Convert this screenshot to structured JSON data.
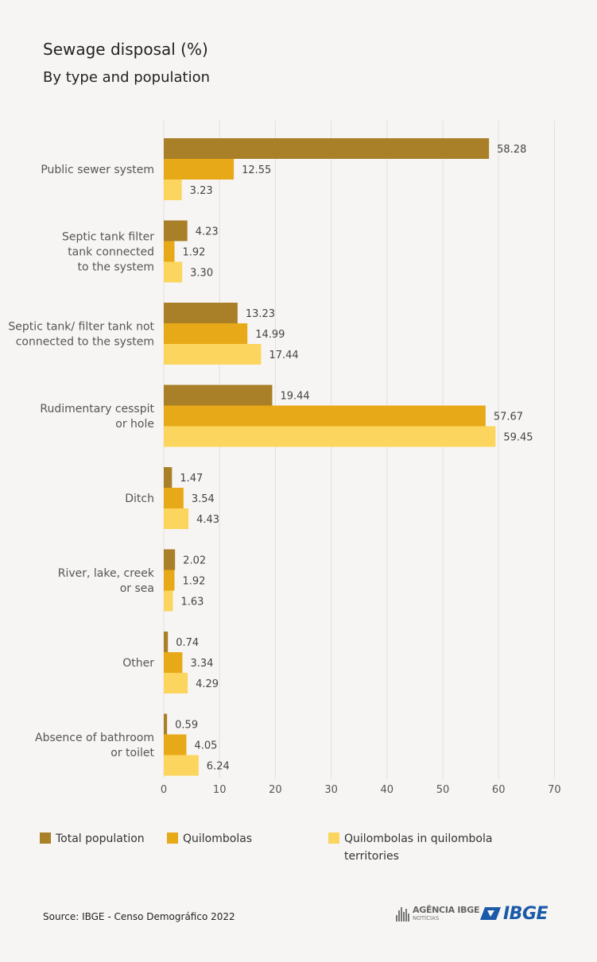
{
  "title": "Sewage disposal (%)",
  "subtitle": "By type and population",
  "source": "Source: IBGE - Censo Demográfico 2022",
  "logos": {
    "agencia": "AGÊNCIA IBGE",
    "agencia_sub": "NOTÍCIAS",
    "ibge": "IBGE"
  },
  "chart_data": {
    "type": "bar",
    "orientation": "horizontal",
    "categories": [
      "Public sewer system",
      "Septic tank filter tank connected to the system",
      "Septic tank/ filter tank not connected to the system",
      "Rudimentary cesspit or hole",
      "Ditch",
      "River, lake, creek or sea",
      "Other",
      "Absence of bathroom or toilet"
    ],
    "category_lines": [
      [
        "Public sewer system"
      ],
      [
        "Septic tank filter",
        "tank connected",
        "to the system"
      ],
      [
        "Septic tank/ filter tank not",
        "connected to the system"
      ],
      [
        "Rudimentary cesspit",
        "or hole"
      ],
      [
        "Ditch"
      ],
      [
        "River, lake, creek",
        "or sea"
      ],
      [
        "Other"
      ],
      [
        "Absence of bathroom",
        "or toilet"
      ]
    ],
    "series": [
      {
        "name": "Total population",
        "color": "#a97f28",
        "values": [
          58.28,
          4.23,
          13.23,
          19.44,
          1.47,
          2.02,
          0.74,
          0.59
        ],
        "labels": [
          "58.28",
          "4.23",
          "13.23",
          "19.44",
          "1.47",
          "2.02",
          "0.74",
          "0.59"
        ]
      },
      {
        "name": "Quilombolas",
        "color": "#e8a918",
        "values": [
          12.55,
          1.92,
          14.99,
          57.67,
          3.54,
          1.92,
          3.34,
          4.05
        ],
        "labels": [
          "12.55",
          "1.92",
          "14.99",
          "57.67",
          "3.54",
          "1.92",
          "3.34",
          "4.05"
        ]
      },
      {
        "name": "Quilombolas in quilombola territories",
        "color": "#fbd55e",
        "values": [
          3.23,
          3.3,
          17.44,
          59.45,
          4.43,
          1.63,
          4.29,
          6.24
        ],
        "labels": [
          "3.23",
          "3.30",
          "17.44",
          "59.45",
          "4.43",
          "1.63",
          "4.29",
          "6.24"
        ]
      }
    ],
    "legend_lines": [
      [
        "Total population"
      ],
      [
        "Quilombolas"
      ],
      [
        "Quilombolas in quilombola",
        "territories"
      ]
    ],
    "xlim": [
      0,
      70
    ],
    "xticks": [
      0,
      10,
      20,
      30,
      40,
      50,
      60,
      70
    ],
    "grid": true,
    "legend_position": "bottom"
  }
}
